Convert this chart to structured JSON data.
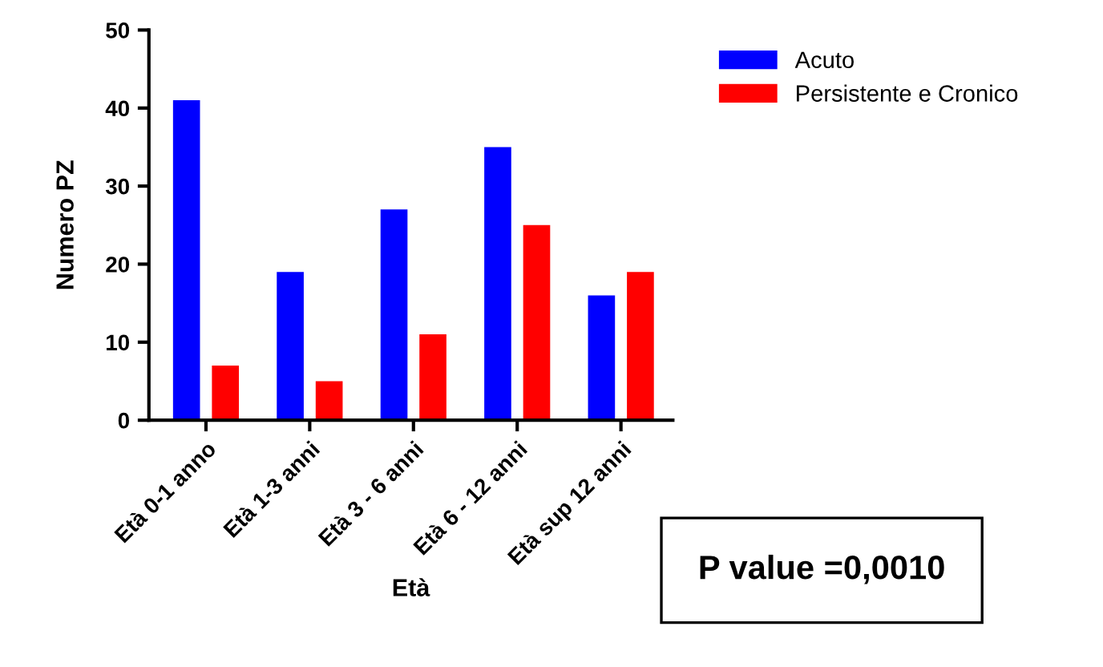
{
  "chart_data": {
    "type": "bar",
    "xlabel": "Età",
    "ylabel": "Numero PZ",
    "categories": [
      "Età 0-1 anno",
      "Età 1-3 anni",
      "Età 3 - 6 anni",
      "Età 6 - 12 anni",
      "Età sup 12 anni"
    ],
    "series": [
      {
        "name": "Acuto",
        "color": "#0000ff",
        "values": [
          41,
          19,
          27,
          35,
          16
        ]
      },
      {
        "name": "Persistente e Cronico",
        "color": "#ff0000",
        "values": [
          7,
          5,
          11,
          25,
          19
        ]
      }
    ],
    "ylim": [
      0,
      50
    ],
    "yticks": [
      0,
      10,
      20,
      30,
      40,
      50
    ],
    "grid": false,
    "legend": "top right",
    "annotations": [
      "P value =0,0010"
    ]
  }
}
